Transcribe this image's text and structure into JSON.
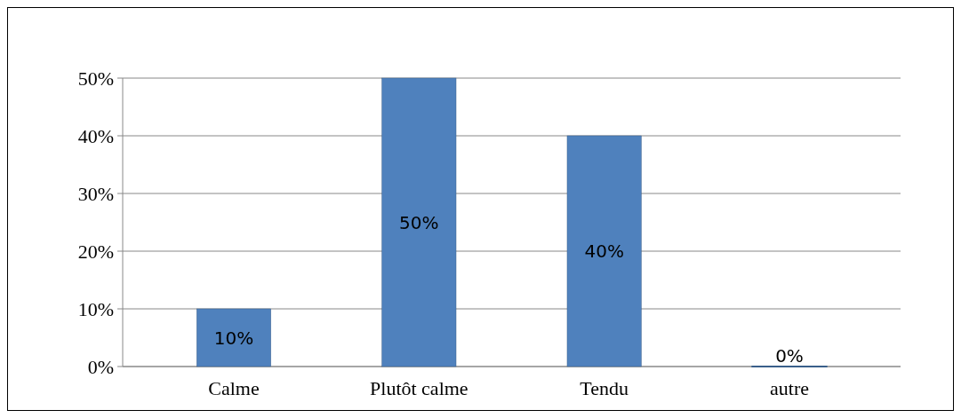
{
  "chart_data": {
    "type": "bar",
    "categories": [
      "Calme",
      "Plutôt calme",
      "Tendu",
      "autre"
    ],
    "values": [
      10,
      50,
      40,
      0
    ],
    "value_labels": [
      "10%",
      "50%",
      "40%",
      "0%"
    ],
    "color": "#4f81bd",
    "ylim": [
      0,
      50
    ],
    "yticks": [
      {
        "value": 0,
        "label": "0%"
      },
      {
        "value": 10,
        "label": "10%"
      },
      {
        "value": 20,
        "label": "20%"
      },
      {
        "value": 30,
        "label": "30%"
      },
      {
        "value": 40,
        "label": "40%"
      },
      {
        "value": 50,
        "label": "50%"
      }
    ],
    "grid": true
  }
}
